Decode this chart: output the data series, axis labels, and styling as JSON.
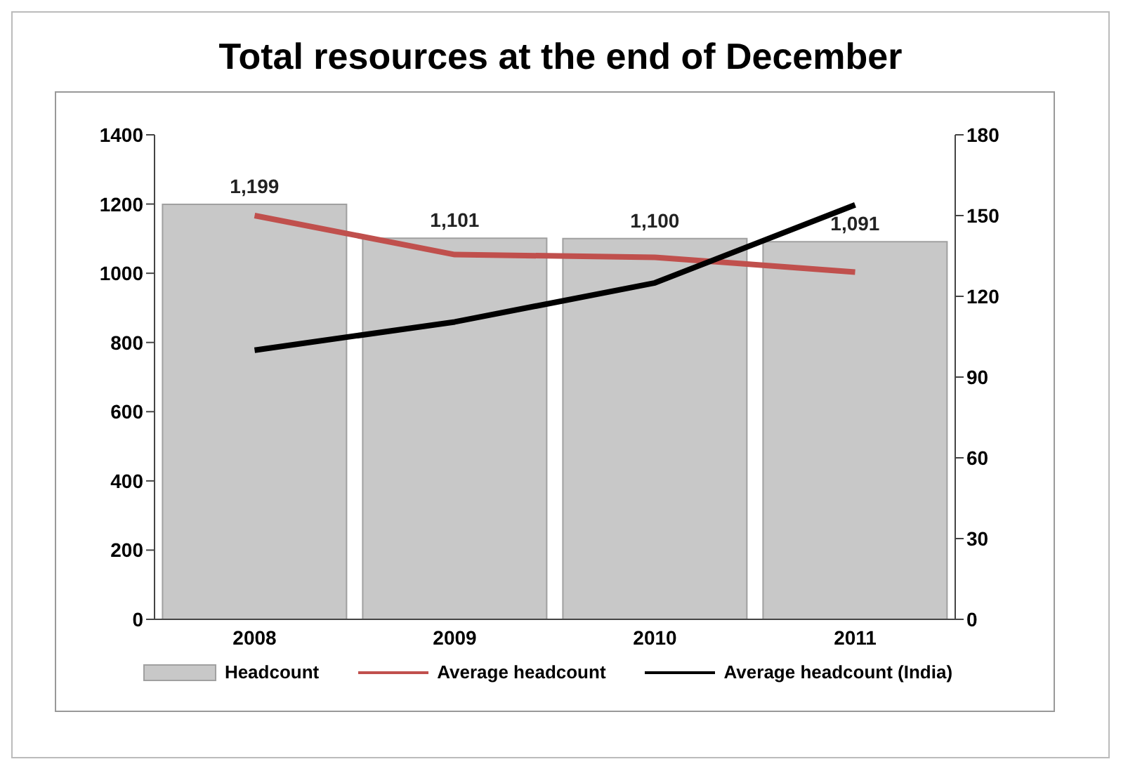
{
  "chart_data": {
    "type": "bar",
    "title": "Total resources at the end of December",
    "categories": [
      "2008",
      "2009",
      "2010",
      "2011"
    ],
    "series": [
      {
        "name": "Headcount",
        "color": "#c8c8c8",
        "values": [
          1199,
          1101,
          1100,
          1091
        ],
        "value_labels": [
          "1,199",
          "1,101",
          "1,100",
          "1,091"
        ]
      },
      {
        "name": "Average headcount",
        "type": "line",
        "axis": "y2",
        "color": "#c0504d",
        "values": [
          150,
          135.5,
          134.5,
          129
        ]
      },
      {
        "name": "Average headcount (India)",
        "type": "line",
        "axis": "y2",
        "color": "#000000",
        "values": [
          100,
          110.5,
          125,
          154
        ]
      }
    ],
    "ylim": [
      0,
      1400
    ],
    "yticks": [
      0,
      200,
      400,
      600,
      800,
      1000,
      1200,
      1400
    ],
    "y2lim": [
      0,
      180
    ],
    "y2ticks": [
      0,
      30,
      60,
      90,
      120,
      150,
      180
    ],
    "legend": "bottom",
    "marker": "none"
  }
}
